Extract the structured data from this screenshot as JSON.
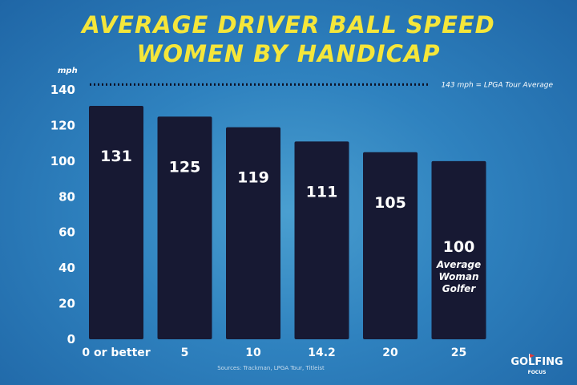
{
  "title_line_1": "AVERAGE DRIVER BALL SPEED",
  "title_line_2": "WOMEN BY HANDICAP",
  "source": "Sources: Trackman, LPGA Tour, Titleist",
  "logo": {
    "line1": "GOLFING",
    "line2": "FOCUS"
  },
  "colors": {
    "title": "#f5e63a",
    "bar": "#171933",
    "background": "#2f82bf"
  },
  "chart_data": {
    "type": "bar",
    "title": "AVERAGE DRIVER BALL SPEED WOMEN BY HANDICAP",
    "ylabel": "mph",
    "xlabel": "",
    "ylim": [
      0,
      140
    ],
    "yticks": [
      0,
      20,
      40,
      60,
      80,
      100,
      120,
      140
    ],
    "grid": false,
    "categories": [
      "0 or better",
      "5",
      "10",
      "14.2",
      "20",
      "25"
    ],
    "values": [
      131,
      125,
      119,
      111,
      105,
      100
    ],
    "data_labels": [
      "131",
      "125",
      "119",
      "111",
      "105",
      "100"
    ],
    "bar_annotation": {
      "category": "25",
      "lines": [
        "Average",
        "Woman",
        "Golfer"
      ]
    },
    "reference_line": {
      "value": 143,
      "label": "143 mph = LPGA Tour Average",
      "style": "dotted"
    }
  }
}
